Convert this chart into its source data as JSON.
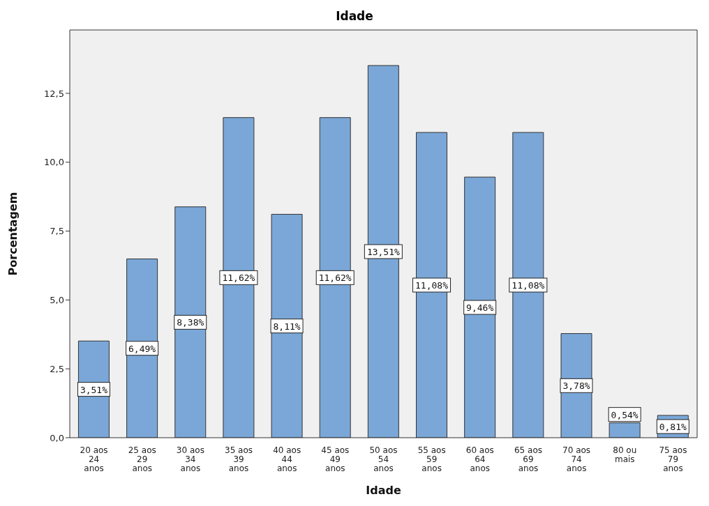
{
  "chart_data": {
    "type": "bar",
    "title": "Idade",
    "xlabel": "Idade",
    "ylabel": "Porcentagem",
    "categories": [
      "20 aos\n24\nanos",
      "25 aos\n29\nanos",
      "30 aos\n34\nanos",
      "35 aos\n39\nanos",
      "40 aos\n44\nanos",
      "45 aos\n49\nanos",
      "50 aos\n54\nanos",
      "55 aos\n59\nanos",
      "60 aos\n64\nanos",
      "65 aos\n69\nanos",
      "70 aos\n74\nanos",
      "80 ou\nmais",
      "75 aos\n79\nanos"
    ],
    "values": [
      3.51,
      6.49,
      8.38,
      11.62,
      8.11,
      11.62,
      13.51,
      11.08,
      9.46,
      11.08,
      3.78,
      0.54,
      0.81
    ],
    "value_labels": [
      "3,51%",
      "6,49%",
      "8,38%",
      "11,62%",
      "8,11%",
      "11,62%",
      "13,51%",
      "11,08%",
      "9,46%",
      "11,08%",
      "3,78%",
      "0,54%",
      "0,81%"
    ],
    "color": "#7aa7d7",
    "ylim": [
      0,
      14.8
    ],
    "yticks": [
      {
        "value": 0,
        "label": "0,0"
      },
      {
        "value": 2.5,
        "label": "2,5"
      },
      {
        "value": 5,
        "label": "5,0"
      },
      {
        "value": 7.5,
        "label": "7,5"
      },
      {
        "value": 10,
        "label": "10,0"
      },
      {
        "value": 12.5,
        "label": "12,5"
      }
    ],
    "grid": false
  }
}
